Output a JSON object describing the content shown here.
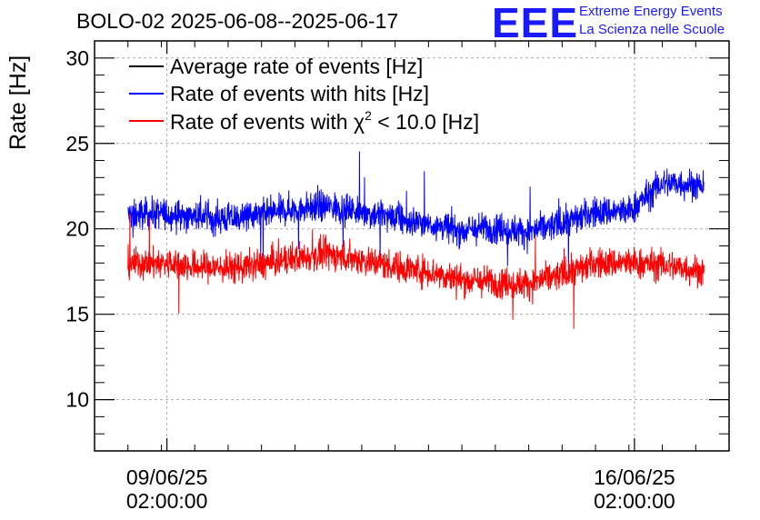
{
  "header": {
    "title": "BOLO-02 2025-06-08--2025-06-17",
    "logo_text": "EEE",
    "logo_line1": "Extreme Energy Events",
    "logo_line2": "La Scienza nelle Scuole"
  },
  "colors": {
    "average": "#000000",
    "hits": "#0000ff",
    "chi2": "#ff0000",
    "grid": "#aaaaaa",
    "logo": "#1a1aff"
  },
  "chart_data": {
    "type": "line",
    "title": "BOLO-02 2025-06-08--2025-06-17",
    "ylabel": "Rate [Hz]",
    "xlabel": "",
    "ylim": [
      7,
      31
    ],
    "yticks": [
      10,
      15,
      20,
      25,
      30
    ],
    "xlim": [
      "2025-06-08 00:00:00",
      "2025-06-17 12:00:00"
    ],
    "xticks": [
      {
        "date": "2025-06-09 02:00:00",
        "label_date": "09/06/25",
        "label_time": "02:00:00"
      },
      {
        "date": "2025-06-16 02:00:00",
        "label_date": "16/06/25",
        "label_time": "02:00:00"
      }
    ],
    "grid": true,
    "legend_position": "top-left",
    "x_range_data": [
      "2025-06-08 12:00:00",
      "2025-06-17 03:00:00"
    ],
    "series": [
      {
        "name": "Average rate of events [Hz]",
        "color": "#000000",
        "x": [],
        "values": []
      },
      {
        "name": "Rate of events with hits [Hz]",
        "color": "#0000ff",
        "x": [
          "2025-06-08 12:00",
          "2025-06-09 00:00",
          "2025-06-09 12:00",
          "2025-06-10 00:00",
          "2025-06-10 12:00",
          "2025-06-11 00:00",
          "2025-06-11 12:00",
          "2025-06-12 00:00",
          "2025-06-12 12:00",
          "2025-06-13 00:00",
          "2025-06-13 12:00",
          "2025-06-14 00:00",
          "2025-06-14 12:00",
          "2025-06-15 00:00",
          "2025-06-15 12:00",
          "2025-06-16 00:00",
          "2025-06-16 12:00",
          "2025-06-17 00:00",
          "2025-06-17 03:00"
        ],
        "values": [
          20.8,
          20.9,
          20.7,
          20.6,
          20.8,
          21.2,
          21.3,
          21.0,
          20.6,
          20.3,
          19.9,
          20.1,
          19.8,
          20.3,
          21.0,
          21.0,
          22.7,
          22.6,
          22.4
        ]
      },
      {
        "name": "Rate of events with χ² < 10.0 [Hz]",
        "legend_prefix": "Rate of events with ",
        "legend_chi": "χ",
        "legend_sup": "2",
        "legend_suffix": " < 10.0 [Hz]",
        "color": "#ff0000",
        "x": [
          "2025-06-08 12:00",
          "2025-06-09 00:00",
          "2025-06-09 12:00",
          "2025-06-10 00:00",
          "2025-06-10 12:00",
          "2025-06-11 00:00",
          "2025-06-11 12:00",
          "2025-06-12 00:00",
          "2025-06-12 12:00",
          "2025-06-13 00:00",
          "2025-06-13 12:00",
          "2025-06-14 00:00",
          "2025-06-14 12:00",
          "2025-06-15 00:00",
          "2025-06-15 12:00",
          "2025-06-16 00:00",
          "2025-06-16 12:00",
          "2025-06-17 00:00",
          "2025-06-17 03:00"
        ],
        "values": [
          18.0,
          18.0,
          17.8,
          17.7,
          17.9,
          18.3,
          18.5,
          18.2,
          17.8,
          17.5,
          17.0,
          16.9,
          16.8,
          17.3,
          18.0,
          18.0,
          17.9,
          17.6,
          17.5
        ]
      }
    ]
  }
}
